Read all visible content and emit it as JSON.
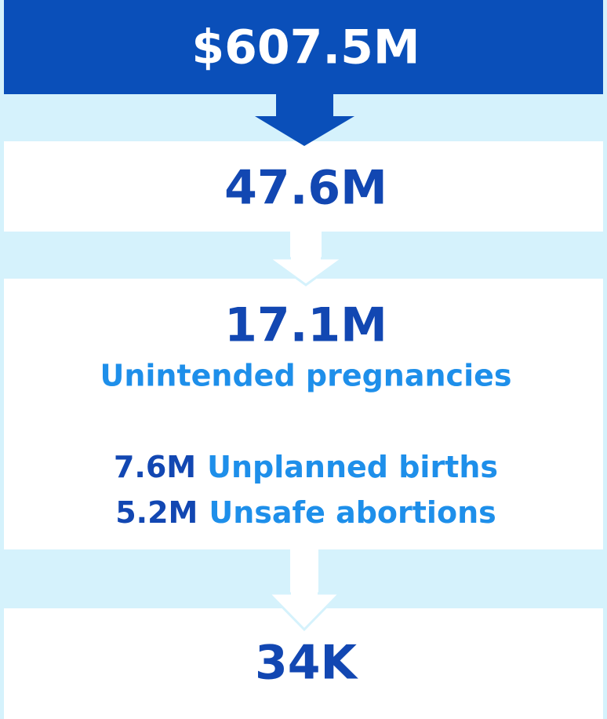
{
  "boxes": [
    {
      "value": "$607.5M"
    },
    {
      "value": "47.6M"
    },
    {
      "value": "17.1M",
      "label": "Unintended pregnancies",
      "items": [
        {
          "value": "7.6M",
          "label": "Unplanned births"
        },
        {
          "value": "5.2M",
          "label": "Unsafe abortions"
        }
      ]
    },
    {
      "value": "34K"
    }
  ]
}
